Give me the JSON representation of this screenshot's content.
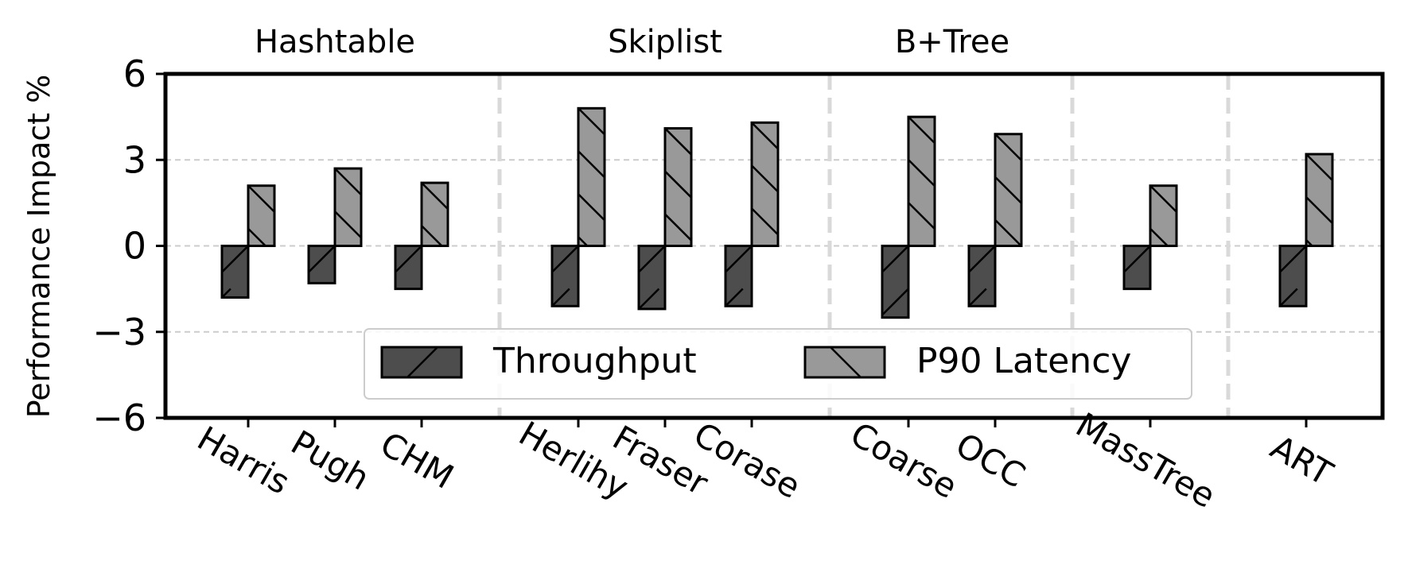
{
  "chart_data": {
    "type": "bar",
    "ylabel": "Performance Impact %",
    "ylim": [
      -6,
      6
    ],
    "yticks": [
      6,
      3,
      0,
      -3,
      -6
    ],
    "ytick_labels": [
      "6",
      "3",
      "0",
      "−3",
      "−6"
    ],
    "grid": "horizontal dashed",
    "legend_position": "lower-center",
    "categories": [
      "Harris",
      "Pugh",
      "CHM",
      "Herlihy",
      "Fraser",
      "Corase",
      "Coarse",
      "OCC",
      "MassTree",
      "ART"
    ],
    "groups": [
      {
        "label": "Hashtable",
        "categories": [
          "Harris",
          "Pugh",
          "CHM"
        ]
      },
      {
        "label": "Skiplist",
        "categories": [
          "Herlihy",
          "Fraser",
          "Corase"
        ]
      },
      {
        "label": "B+Tree",
        "categories": [
          "Coarse",
          "OCC"
        ]
      },
      {
        "label": "",
        "categories": [
          "MassTree"
        ]
      },
      {
        "label": "",
        "categories": [
          "ART"
        ]
      }
    ],
    "series": [
      {
        "name": "Throughput",
        "color": "#4d4d4d",
        "hatch": "/",
        "values": [
          -1.8,
          -1.3,
          -1.5,
          -2.1,
          -2.2,
          -2.1,
          -2.5,
          -2.1,
          -1.5,
          -2.1
        ]
      },
      {
        "name": "P90 Latency",
        "color": "#999999",
        "hatch": "\\",
        "values": [
          2.1,
          2.7,
          2.2,
          4.8,
          4.1,
          4.3,
          4.5,
          3.9,
          2.1,
          3.2
        ]
      }
    ]
  }
}
